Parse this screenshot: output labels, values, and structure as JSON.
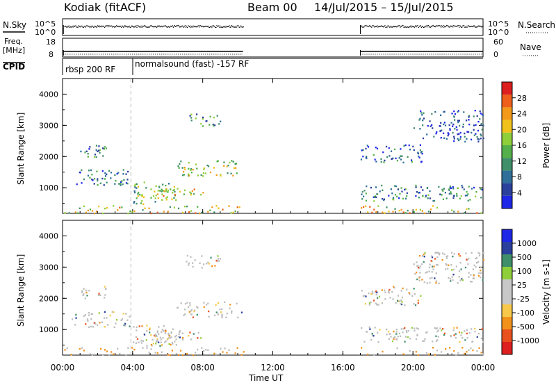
{
  "header": {
    "station": "Kodiak (fitACF)",
    "beam": "Beam 00",
    "date_range": "14/Jul/2015 – 15/Jul/2015"
  },
  "top_panels": {
    "nsky_label": "N.Sky",
    "nsearch_label": "N.Search",
    "noise_ticks": [
      "10^5",
      "10^0"
    ],
    "freq_label_1": "Freq.",
    "freq_label_2": "[MHz]",
    "freq_ticks": [
      "18",
      "8"
    ],
    "nave_label": "Nave",
    "nave_ticks": [
      "60",
      "0"
    ],
    "cpid_label": "CPID",
    "cpid_1": "rbsp 200 RF",
    "cpid_2": "normalsound (fast) -157 RF"
  },
  "colors": {
    "power": [
      "#1f27e6",
      "#2b3f9c",
      "#2f6f99",
      "#3f8f6a",
      "#53b04a",
      "#8fcf3a",
      "#f1c21b",
      "#f39a1a",
      "#ee5f1b",
      "#dd1f1f"
    ],
    "velocity": [
      "#dd1f1f",
      "#e8511d",
      "#f3921b",
      "#f7c84a",
      "#c8c8c8",
      "#c8c8c8",
      "#8fcf3a",
      "#3f8f6a",
      "#2b3f9c",
      "#1f27e6"
    ],
    "ground": "#bdbdbd"
  },
  "chart_data": [
    {
      "type": "heatmap",
      "name": "power_panel",
      "ylabel": "Slant Range [km]",
      "xlabel": "Time UT",
      "x_ticks": [
        "00:00",
        "04:00",
        "08:00",
        "12:00",
        "16:00",
        "20:00",
        "00:00"
      ],
      "x_range_hours": [
        0,
        24
      ],
      "y_ticks": [
        "1000",
        "2000",
        "3000",
        "4000"
      ],
      "ylim_km": [
        180,
        4500
      ],
      "colorbar_label": "Power [dB]",
      "colorbar_ticks": [
        "4",
        "8",
        "12",
        "16",
        "20",
        "24",
        "28"
      ],
      "colorbar_range": [
        0,
        30
      ],
      "data_gap_hours": [
        10.3,
        17.0
      ],
      "scatter_regions": [
        {
          "t": [
            0.5,
            3.8
          ],
          "r": [
            1100,
            1600
          ],
          "level": 0.25
        },
        {
          "t": [
            1.0,
            2.5
          ],
          "r": [
            2000,
            2400
          ],
          "level": 0.3
        },
        {
          "t": [
            4.0,
            6.5
          ],
          "r": [
            500,
            1200
          ],
          "level": 0.45
        },
        {
          "t": [
            6.5,
            10.2
          ],
          "r": [
            1400,
            1900
          ],
          "level": 0.55
        },
        {
          "t": [
            7.0,
            9.0
          ],
          "r": [
            3000,
            3400
          ],
          "level": 0.35
        },
        {
          "t": [
            5.0,
            8.0
          ],
          "r": [
            700,
            1000
          ],
          "level": 0.6
        },
        {
          "t": [
            17.0,
            24.0
          ],
          "r": [
            600,
            1100
          ],
          "level": 0.3
        },
        {
          "t": [
            17.0,
            20.5
          ],
          "r": [
            1800,
            2400
          ],
          "level": 0.2
        },
        {
          "t": [
            20.0,
            24.0
          ],
          "r": [
            2500,
            3500
          ],
          "level": 0.15
        }
      ]
    },
    {
      "type": "heatmap",
      "name": "velocity_panel",
      "ylabel": "Slant Range [km]",
      "xlabel": "Time UT",
      "x_ticks": [
        "00:00",
        "04:00",
        "08:00",
        "12:00",
        "16:00",
        "20:00",
        "00:00"
      ],
      "x_range_hours": [
        0,
        24
      ],
      "y_ticks": [
        "1000",
        "2000",
        "3000",
        "4000"
      ],
      "ylim_km": [
        180,
        4500
      ],
      "colorbar_label": "Velocity [m s-1]",
      "colorbar_ticks": [
        "1000",
        "500",
        "100",
        "25",
        "-25",
        "-100",
        "-500",
        "-1000"
      ],
      "colorbar_range": [
        -1200,
        1200
      ],
      "data_gap_hours": [
        10.3,
        17.0
      ],
      "note": "velocity panel mostly ground scatter (grey) with sporadic orange/red and green"
    }
  ]
}
